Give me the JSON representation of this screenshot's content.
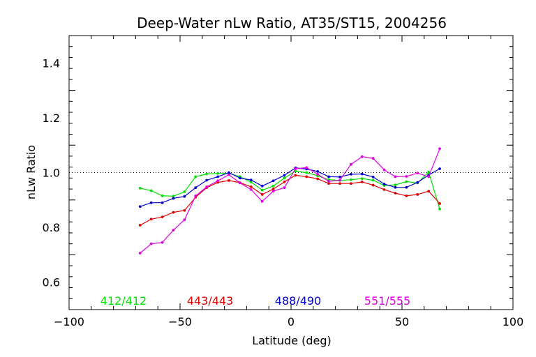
{
  "chart_data": {
    "type": "line",
    "title": "Deep-Water nLw Ratio, AT35/ST15, 2004256",
    "xlabel": "Latitude (deg)",
    "ylabel": "nLw Ratio",
    "xlim": [
      -100,
      100
    ],
    "ylim": [
      0.5,
      1.5
    ],
    "x_ticks": [
      -100,
      -50,
      0,
      50,
      100
    ],
    "x_tick_labels": [
      "−100",
      "−50",
      "0",
      "50",
      "100"
    ],
    "y_ticks": [
      0.6,
      0.8,
      1.0,
      1.2,
      1.4
    ],
    "y_tick_labels": [
      "0.6",
      "0.8",
      "1.0",
      "1.2",
      "1.4"
    ],
    "reference_line": {
      "y": 1.0,
      "style": "dotted"
    },
    "grid": false,
    "x": [
      -68,
      -63,
      -58,
      -53,
      -48,
      -43,
      -38,
      -33,
      -28,
      -23,
      -18,
      -13,
      -8,
      -3,
      2,
      7,
      12,
      17,
      22,
      27,
      32,
      37,
      42,
      47,
      52,
      57,
      62,
      67
    ],
    "series": [
      {
        "name": "412/412",
        "color": "#00e000",
        "values": [
          0.943,
          0.934,
          0.915,
          0.914,
          0.93,
          0.985,
          0.995,
          0.997,
          0.997,
          0.985,
          0.965,
          0.936,
          0.951,
          0.98,
          1.005,
          1.0,
          0.988,
          0.974,
          0.971,
          0.974,
          0.978,
          0.972,
          0.953,
          0.955,
          0.967,
          0.962,
          1.002,
          0.867
        ]
      },
      {
        "name": "443/443",
        "color": "#e00000",
        "values": [
          0.808,
          0.83,
          0.838,
          0.855,
          0.862,
          0.91,
          0.945,
          0.964,
          0.971,
          0.963,
          0.948,
          0.92,
          0.94,
          0.966,
          0.99,
          0.985,
          0.977,
          0.96,
          0.96,
          0.96,
          0.966,
          0.954,
          0.938,
          0.925,
          0.915,
          0.92,
          0.932,
          0.887
        ]
      },
      {
        "name": "488/490",
        "color": "#0000d0",
        "values": [
          0.876,
          0.89,
          0.89,
          0.906,
          0.913,
          0.945,
          0.972,
          0.985,
          1.0,
          0.98,
          0.973,
          0.951,
          0.97,
          0.99,
          1.017,
          1.013,
          1.004,
          0.985,
          0.984,
          0.994,
          0.995,
          0.984,
          0.958,
          0.946,
          0.946,
          0.964,
          0.991,
          1.014
        ]
      },
      {
        "name": "551/555",
        "color": "#e000e0",
        "values": [
          0.706,
          0.74,
          0.745,
          0.79,
          0.828,
          0.915,
          0.948,
          0.97,
          0.992,
          0.962,
          0.938,
          0.895,
          0.932,
          0.945,
          1.014,
          1.018,
          0.994,
          0.968,
          0.972,
          1.03,
          1.058,
          1.052,
          1.01,
          0.985,
          0.986,
          0.998,
          0.985,
          1.087
        ]
      }
    ]
  }
}
